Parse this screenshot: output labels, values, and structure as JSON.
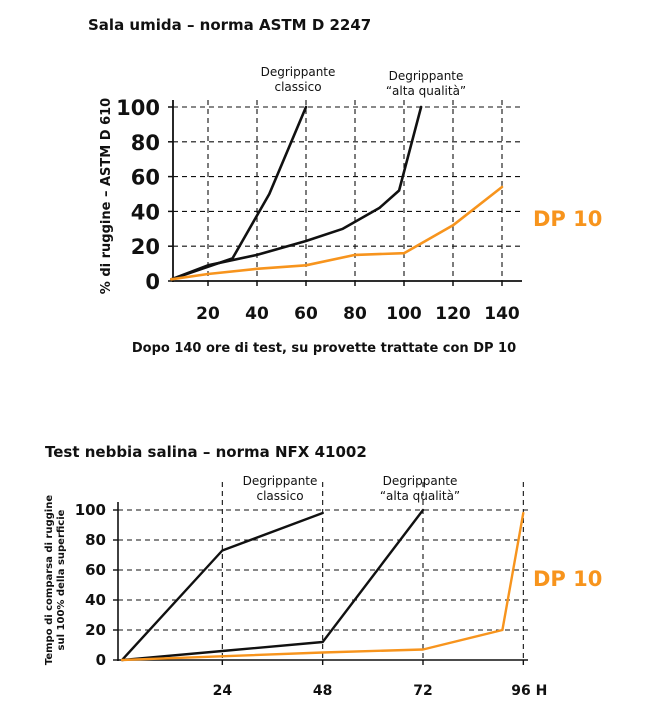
{
  "chart_data": [
    {
      "type": "line",
      "title": "Sala umida – norma ASTM D 2247",
      "xlabel": "Dopo 140 ore di test, su provette trattate con DP 10",
      "ylabel": "% di ruggine – ASTM D 610",
      "xlim": [
        5,
        145
      ],
      "ylim": [
        0,
        100
      ],
      "x_ticks": [
        "20",
        "40",
        "60",
        "80",
        "100",
        "120",
        "140"
      ],
      "y_ticks": [
        "0",
        "20",
        "40",
        "60",
        "80",
        "100"
      ],
      "grid": true,
      "series": [
        {
          "name": "Degrippante classico",
          "label_lines": [
            "Degrippante",
            "classico"
          ],
          "color": "#111111",
          "points": [
            [
              5,
              1
            ],
            [
              30,
              13
            ],
            [
              45,
              50
            ],
            [
              60,
              100
            ]
          ]
        },
        {
          "name": "Degrippante “alta qualità”",
          "label_lines": [
            "Degrippante",
            "“alta qualità”"
          ],
          "color": "#111111",
          "points": [
            [
              5,
              1
            ],
            [
              20,
              9
            ],
            [
              40,
              15
            ],
            [
              60,
              23
            ],
            [
              75,
              30
            ],
            [
              90,
              42
            ],
            [
              98,
              52
            ],
            [
              107,
              100
            ]
          ]
        },
        {
          "name": "DP 10",
          "label_lines": [
            "DP 10"
          ],
          "color": "#f7941d",
          "points": [
            [
              5,
              1
            ],
            [
              20,
              4
            ],
            [
              40,
              7
            ],
            [
              60,
              9
            ],
            [
              80,
              15
            ],
            [
              100,
              16
            ],
            [
              120,
              32
            ],
            [
              140,
              54
            ]
          ]
        }
      ]
    },
    {
      "type": "line",
      "title": "Test nebbia salina – norma NFX 41002",
      "xlabel": "",
      "ylabel": "Tempo di comparsa di ruggine sul 100% della superficie",
      "ylabel_lines": [
        "Tempo di comparsa di ruggine",
        "sul 100% della superficie"
      ],
      "xlim": [
        0,
        96
      ],
      "ylim": [
        0,
        100
      ],
      "x_ticks": [
        "24",
        "48",
        "72",
        "96 H"
      ],
      "x_tick_values": [
        24,
        48,
        72,
        96
      ],
      "y_ticks": [
        "0",
        "20",
        "40",
        "60",
        "80",
        "100"
      ],
      "grid": true,
      "series": [
        {
          "name": "Degrippante classico",
          "label_lines": [
            "Degrippante",
            "classico"
          ],
          "color": "#111111",
          "points": [
            [
              0,
              0
            ],
            [
              24,
              73
            ],
            [
              48,
              98
            ]
          ]
        },
        {
          "name": "Degrippante “alta qualità”",
          "label_lines": [
            "Degrippante",
            "“alta qualità”"
          ],
          "color": "#111111",
          "points": [
            [
              0,
              0
            ],
            [
              24,
              6
            ],
            [
              48,
              12
            ],
            [
              72,
              100
            ]
          ]
        },
        {
          "name": "DP 10",
          "label_lines": [
            "DP 10"
          ],
          "color": "#f7941d",
          "points": [
            [
              0,
              0
            ],
            [
              48,
              5
            ],
            [
              72,
              7
            ],
            [
              91,
              20
            ],
            [
              96,
              98
            ]
          ]
        }
      ]
    }
  ]
}
